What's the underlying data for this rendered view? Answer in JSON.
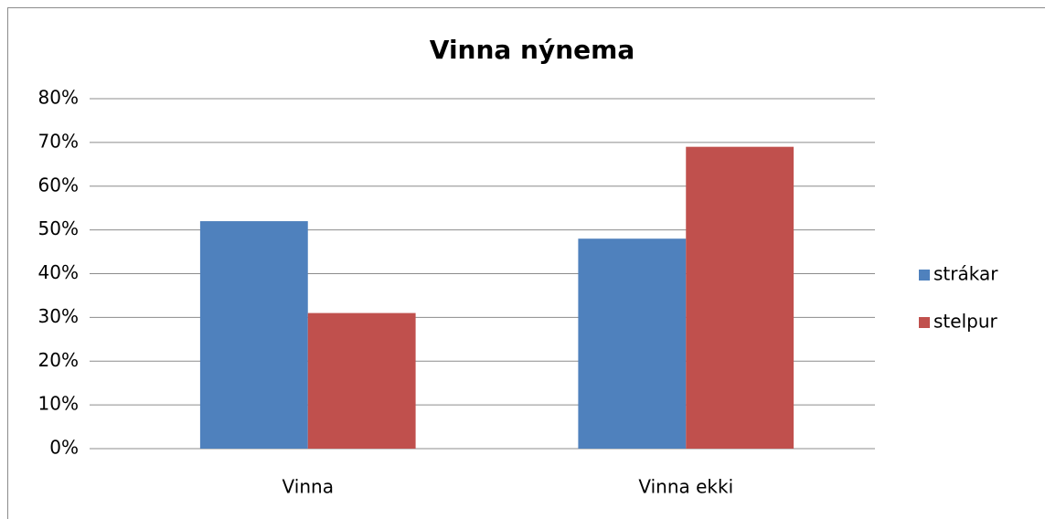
{
  "chart_data": {
    "type": "bar",
    "title": "Vinna nýnema",
    "categories": [
      "Vinna",
      "Vinna ekki"
    ],
    "series": [
      {
        "name": "strákar",
        "color": "#4f81bd",
        "values": [
          52,
          48
        ]
      },
      {
        "name": "stelpur",
        "color": "#c0504d",
        "values": [
          31,
          69
        ]
      }
    ],
    "ylim": [
      0,
      80
    ],
    "yticks": [
      {
        "value": 0,
        "label": "0%"
      },
      {
        "value": 10,
        "label": "10%"
      },
      {
        "value": 20,
        "label": "20%"
      },
      {
        "value": 30,
        "label": "30%"
      },
      {
        "value": 40,
        "label": "40%"
      },
      {
        "value": 50,
        "label": "50%"
      },
      {
        "value": 60,
        "label": "60%"
      },
      {
        "value": 70,
        "label": "70%"
      },
      {
        "value": 80,
        "label": "80%"
      }
    ],
    "grid": true,
    "legend": "right"
  }
}
